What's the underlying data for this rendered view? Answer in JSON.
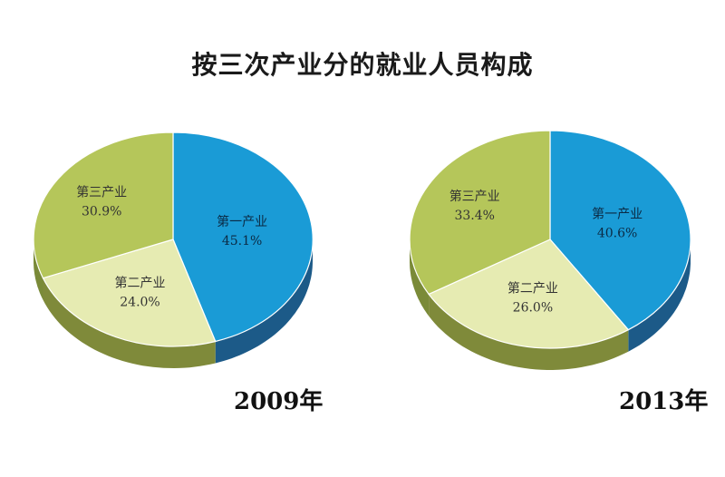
{
  "title": "按三次产业分的就业人员构成",
  "colors": {
    "primary_top": "#1a9bd6",
    "primary_side": "#1c5a88",
    "secondary_top": "#e6ebb2",
    "secondary_side": "#7f8a3a",
    "tertiary_top": "#b5c65a",
    "tertiary_side": "#7a8a38"
  },
  "chart_data": [
    {
      "type": "pie",
      "year_label": "2009年",
      "slices": [
        {
          "name": "第一产业",
          "value": 45.1,
          "label": "45.1%"
        },
        {
          "name": "第二产业",
          "value": 24.0,
          "label": "24.0%"
        },
        {
          "name": "第三产业",
          "value": 30.9,
          "label": "30.9%"
        }
      ]
    },
    {
      "type": "pie",
      "year_label": "2013年",
      "slices": [
        {
          "name": "第一产业",
          "value": 40.6,
          "label": "40.6%"
        },
        {
          "name": "第二产业",
          "value": 26.0,
          "label": "26.0%"
        },
        {
          "name": "第三产业",
          "value": 33.4,
          "label": "33.4%"
        }
      ]
    }
  ]
}
